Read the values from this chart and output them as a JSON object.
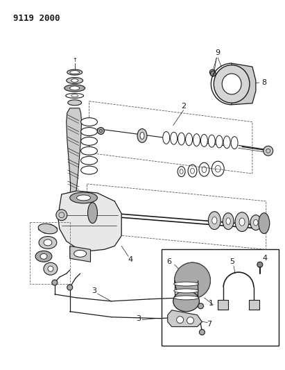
{
  "title": "9119 2000",
  "background_color": "#ffffff",
  "fig_width": 4.11,
  "fig_height": 5.33,
  "dpi": 100,
  "line_color": "#1a1a1a",
  "gray_light": "#cccccc",
  "gray_mid": "#aaaaaa",
  "gray_dark": "#888888"
}
